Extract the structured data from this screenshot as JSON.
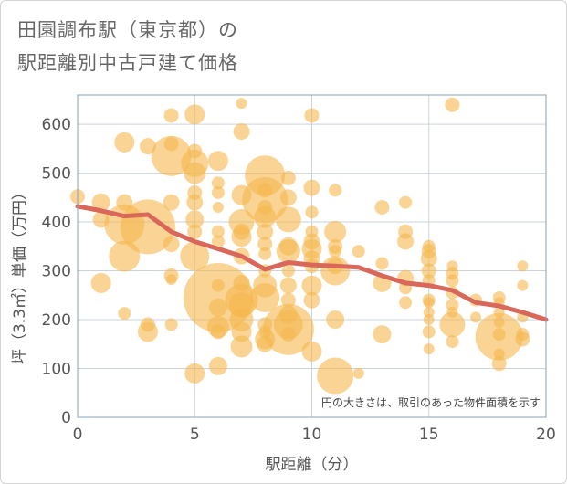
{
  "colors": {
    "bubble": "#f5b84f",
    "line": "#d9675a",
    "grid": "#c9d3dd",
    "plot_border": "#8aa0b6"
  },
  "chart_data": {
    "type": "scatter",
    "title_line1": "田園調布駅（東京都）の",
    "title_line2": "駅距離別中古戸建て価格",
    "xlabel": "駅距離（分）",
    "ylabel": "坪（3.3㎡）単価（万円）",
    "note": "円の大きさは、取引のあった物件面積を示す",
    "xlim": [
      0,
      20
    ],
    "ylim": [
      0,
      660
    ],
    "xticks": [
      0,
      5,
      10,
      15,
      20
    ],
    "yticks": [
      0,
      100,
      200,
      300,
      400,
      500,
      600
    ],
    "grid": true,
    "trend": {
      "name": "",
      "x": [
        0,
        1,
        2,
        3,
        4,
        5,
        6,
        7,
        8,
        9,
        10,
        11,
        12,
        13,
        14,
        15,
        16,
        17,
        18,
        19,
        20
      ],
      "y": [
        432,
        423,
        412,
        415,
        380,
        360,
        345,
        330,
        303,
        317,
        312,
        310,
        307,
        290,
        275,
        270,
        260,
        235,
        228,
        215,
        200
      ]
    },
    "bubbles": [
      {
        "x": 0,
        "y": 452,
        "s": 8
      },
      {
        "x": 1,
        "y": 440,
        "s": 10
      },
      {
        "x": 1,
        "y": 405,
        "s": 9
      },
      {
        "x": 1,
        "y": 275,
        "s": 11
      },
      {
        "x": 2,
        "y": 563,
        "s": 11
      },
      {
        "x": 2,
        "y": 440,
        "s": 9
      },
      {
        "x": 2,
        "y": 395,
        "s": 22
      },
      {
        "x": 2,
        "y": 330,
        "s": 17
      },
      {
        "x": 2,
        "y": 213,
        "s": 7
      },
      {
        "x": 3,
        "y": 555,
        "s": 9
      },
      {
        "x": 3,
        "y": 390,
        "s": 30
      },
      {
        "x": 3,
        "y": 190,
        "s": 8
      },
      {
        "x": 3,
        "y": 175,
        "s": 11
      },
      {
        "x": 4,
        "y": 618,
        "s": 8
      },
      {
        "x": 4,
        "y": 560,
        "s": 8
      },
      {
        "x": 4,
        "y": 535,
        "s": 22
      },
      {
        "x": 4,
        "y": 440,
        "s": 9
      },
      {
        "x": 4,
        "y": 355,
        "s": 9
      },
      {
        "x": 4,
        "y": 290,
        "s": 8
      },
      {
        "x": 4,
        "y": 282,
        "s": 6
      },
      {
        "x": 4,
        "y": 190,
        "s": 7
      },
      {
        "x": 5,
        "y": 620,
        "s": 11
      },
      {
        "x": 5,
        "y": 545,
        "s": 8
      },
      {
        "x": 5,
        "y": 520,
        "s": 15
      },
      {
        "x": 5,
        "y": 500,
        "s": 12
      },
      {
        "x": 5,
        "y": 460,
        "s": 8
      },
      {
        "x": 5,
        "y": 440,
        "s": 9
      },
      {
        "x": 5,
        "y": 405,
        "s": 10
      },
      {
        "x": 5,
        "y": 380,
        "s": 8
      },
      {
        "x": 5,
        "y": 330,
        "s": 16
      },
      {
        "x": 5,
        "y": 90,
        "s": 11
      },
      {
        "x": 6,
        "y": 525,
        "s": 11
      },
      {
        "x": 6,
        "y": 480,
        "s": 7
      },
      {
        "x": 6,
        "y": 460,
        "s": 7
      },
      {
        "x": 6,
        "y": 430,
        "s": 6
      },
      {
        "x": 6,
        "y": 380,
        "s": 7
      },
      {
        "x": 6,
        "y": 360,
        "s": 7
      },
      {
        "x": 6,
        "y": 270,
        "s": 7
      },
      {
        "x": 6,
        "y": 245,
        "s": 38
      },
      {
        "x": 6,
        "y": 225,
        "s": 10
      },
      {
        "x": 6,
        "y": 185,
        "s": 12
      },
      {
        "x": 6,
        "y": 175,
        "s": 8
      },
      {
        "x": 6,
        "y": 105,
        "s": 10
      },
      {
        "x": 7,
        "y": 643,
        "s": 6
      },
      {
        "x": 7,
        "y": 585,
        "s": 9
      },
      {
        "x": 7,
        "y": 455,
        "s": 11
      },
      {
        "x": 7,
        "y": 400,
        "s": 14
      },
      {
        "x": 7,
        "y": 380,
        "s": 9
      },
      {
        "x": 7,
        "y": 370,
        "s": 11
      },
      {
        "x": 7,
        "y": 330,
        "s": 9
      },
      {
        "x": 7,
        "y": 275,
        "s": 9
      },
      {
        "x": 7,
        "y": 240,
        "s": 18
      },
      {
        "x": 7,
        "y": 230,
        "s": 14
      },
      {
        "x": 7,
        "y": 200,
        "s": 13
      },
      {
        "x": 7,
        "y": 175,
        "s": 11
      },
      {
        "x": 7,
        "y": 145,
        "s": 12
      },
      {
        "x": 8,
        "y": 495,
        "s": 22
      },
      {
        "x": 8,
        "y": 465,
        "s": 8
      },
      {
        "x": 8,
        "y": 445,
        "s": 25
      },
      {
        "x": 8,
        "y": 430,
        "s": 8
      },
      {
        "x": 8,
        "y": 410,
        "s": 12
      },
      {
        "x": 8,
        "y": 380,
        "s": 9
      },
      {
        "x": 8,
        "y": 355,
        "s": 8
      },
      {
        "x": 8,
        "y": 335,
        "s": 7
      },
      {
        "x": 8,
        "y": 300,
        "s": 7
      },
      {
        "x": 8,
        "y": 270,
        "s": 13
      },
      {
        "x": 8,
        "y": 245,
        "s": 16
      },
      {
        "x": 8,
        "y": 190,
        "s": 8
      },
      {
        "x": 8,
        "y": 175,
        "s": 7
      },
      {
        "x": 8,
        "y": 160,
        "s": 11
      },
      {
        "x": 8,
        "y": 150,
        "s": 9
      },
      {
        "x": 9,
        "y": 490,
        "s": 8
      },
      {
        "x": 9,
        "y": 450,
        "s": 9
      },
      {
        "x": 9,
        "y": 405,
        "s": 14
      },
      {
        "x": 9,
        "y": 350,
        "s": 10
      },
      {
        "x": 9,
        "y": 340,
        "s": 13
      },
      {
        "x": 9,
        "y": 300,
        "s": 7
      },
      {
        "x": 9,
        "y": 270,
        "s": 9
      },
      {
        "x": 9,
        "y": 240,
        "s": 8
      },
      {
        "x": 9,
        "y": 210,
        "s": 10
      },
      {
        "x": 9,
        "y": 190,
        "s": 16
      },
      {
        "x": 9,
        "y": 180,
        "s": 28
      },
      {
        "x": 9,
        "y": 170,
        "s": 8
      },
      {
        "x": 10,
        "y": 618,
        "s": 8
      },
      {
        "x": 10,
        "y": 470,
        "s": 9
      },
      {
        "x": 10,
        "y": 420,
        "s": 7
      },
      {
        "x": 10,
        "y": 380,
        "s": 7
      },
      {
        "x": 10,
        "y": 360,
        "s": 9
      },
      {
        "x": 10,
        "y": 345,
        "s": 11
      },
      {
        "x": 10,
        "y": 325,
        "s": 9
      },
      {
        "x": 10,
        "y": 310,
        "s": 8
      },
      {
        "x": 10,
        "y": 270,
        "s": 11
      },
      {
        "x": 10,
        "y": 240,
        "s": 9
      },
      {
        "x": 10,
        "y": 135,
        "s": 11
      },
      {
        "x": 11,
        "y": 465,
        "s": 7
      },
      {
        "x": 11,
        "y": 380,
        "s": 12
      },
      {
        "x": 11,
        "y": 350,
        "s": 8
      },
      {
        "x": 11,
        "y": 340,
        "s": 7
      },
      {
        "x": 11,
        "y": 310,
        "s": 9
      },
      {
        "x": 11,
        "y": 300,
        "s": 16
      },
      {
        "x": 11,
        "y": 200,
        "s": 10
      },
      {
        "x": 11,
        "y": 85,
        "s": 20
      },
      {
        "x": 12,
        "y": 340,
        "s": 7
      },
      {
        "x": 12,
        "y": 90,
        "s": 6
      },
      {
        "x": 13,
        "y": 430,
        "s": 8
      },
      {
        "x": 13,
        "y": 315,
        "s": 7
      },
      {
        "x": 13,
        "y": 275,
        "s": 10
      },
      {
        "x": 13,
        "y": 170,
        "s": 10
      },
      {
        "x": 14,
        "y": 440,
        "s": 7
      },
      {
        "x": 14,
        "y": 380,
        "s": 8
      },
      {
        "x": 14,
        "y": 360,
        "s": 9
      },
      {
        "x": 14,
        "y": 285,
        "s": 9
      },
      {
        "x": 14,
        "y": 265,
        "s": 7
      },
      {
        "x": 14,
        "y": 235,
        "s": 7
      },
      {
        "x": 15,
        "y": 350,
        "s": 7
      },
      {
        "x": 15,
        "y": 340,
        "s": 8
      },
      {
        "x": 15,
        "y": 325,
        "s": 9
      },
      {
        "x": 15,
        "y": 300,
        "s": 8
      },
      {
        "x": 15,
        "y": 280,
        "s": 7
      },
      {
        "x": 15,
        "y": 240,
        "s": 7
      },
      {
        "x": 15,
        "y": 235,
        "s": 6
      },
      {
        "x": 15,
        "y": 215,
        "s": 6
      },
      {
        "x": 15,
        "y": 200,
        "s": 6
      },
      {
        "x": 15,
        "y": 175,
        "s": 7
      },
      {
        "x": 15,
        "y": 140,
        "s": 6
      },
      {
        "x": 16,
        "y": 640,
        "s": 8
      },
      {
        "x": 16,
        "y": 310,
        "s": 6
      },
      {
        "x": 16,
        "y": 295,
        "s": 7
      },
      {
        "x": 16,
        "y": 280,
        "s": 7
      },
      {
        "x": 16,
        "y": 255,
        "s": 7
      },
      {
        "x": 16,
        "y": 230,
        "s": 7
      },
      {
        "x": 16,
        "y": 215,
        "s": 6
      },
      {
        "x": 16,
        "y": 190,
        "s": 14
      },
      {
        "x": 16,
        "y": 155,
        "s": 7
      },
      {
        "x": 17,
        "y": 240,
        "s": 7
      },
      {
        "x": 17,
        "y": 205,
        "s": 6
      },
      {
        "x": 18,
        "y": 245,
        "s": 7
      },
      {
        "x": 18,
        "y": 235,
        "s": 6
      },
      {
        "x": 18,
        "y": 215,
        "s": 6
      },
      {
        "x": 18,
        "y": 195,
        "s": 6
      },
      {
        "x": 18,
        "y": 170,
        "s": 7
      },
      {
        "x": 18,
        "y": 165,
        "s": 26
      },
      {
        "x": 18,
        "y": 130,
        "s": 6
      },
      {
        "x": 18,
        "y": 110,
        "s": 8
      },
      {
        "x": 19,
        "y": 310,
        "s": 6
      },
      {
        "x": 19,
        "y": 270,
        "s": 6
      },
      {
        "x": 19,
        "y": 205,
        "s": 6
      },
      {
        "x": 19,
        "y": 170,
        "s": 7
      },
      {
        "x": 19,
        "y": 160,
        "s": 8
      }
    ]
  }
}
